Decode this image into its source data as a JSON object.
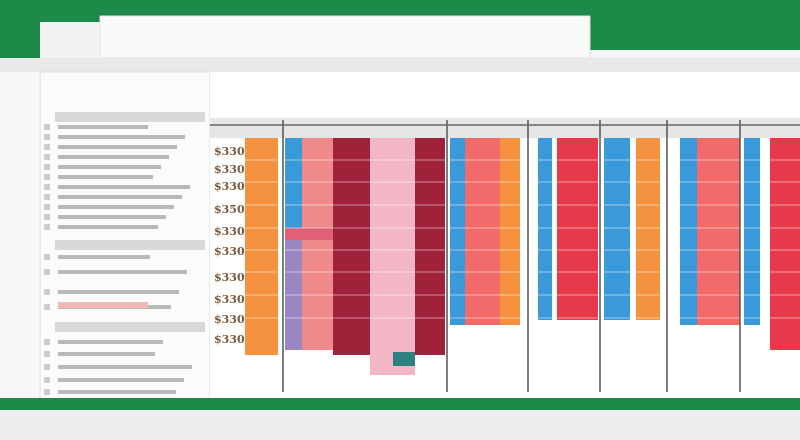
{
  "grid": {
    "row_labels": [
      "$330",
      "$330",
      "$330",
      "$350",
      "$330",
      "$330",
      "$330",
      "$330",
      "$330",
      "$330"
    ]
  }
}
